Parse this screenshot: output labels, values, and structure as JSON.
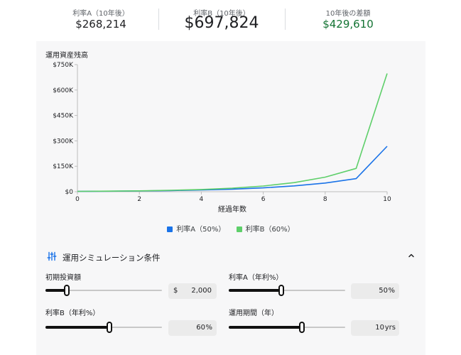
{
  "summary": {
    "rate_a_label": "利率A（10年後）",
    "rate_a_value": "$268,214",
    "rate_b_label": "利率B（10年後）",
    "rate_b_value": "$697,824",
    "diff_label": "10年後の差額",
    "diff_value": "$429,610"
  },
  "chart_data": {
    "type": "line",
    "title": "運用資産残高",
    "xlabel": "経過年数",
    "ylabel": "",
    "x": [
      0,
      1,
      2,
      3,
      4,
      5,
      6,
      7,
      8,
      9,
      10
    ],
    "xticks": [
      "0",
      "2",
      "4",
      "6",
      "8",
      "10"
    ],
    "xlim": [
      0,
      10
    ],
    "ylim": [
      0,
      750000
    ],
    "yticks": [
      "$0",
      "$150K",
      "$300K",
      "$450K",
      "$600K",
      "$750K"
    ],
    "grid": false,
    "legend": "bottom",
    "series": [
      {
        "name": "利率A（50%）",
        "color": "#1a73e8",
        "values": [
          2000,
          3000,
          4500,
          6750,
          10125,
          15188,
          22781,
          34172,
          51258,
          76887,
          268214
        ]
      },
      {
        "name": "利率B（60%）",
        "color": "#5ecf6a",
        "values": [
          2000,
          3200,
          5120,
          8192,
          13107,
          20972,
          33554,
          53687,
          85899,
          137439,
          697824
        ]
      }
    ]
  },
  "settings": {
    "title": "運用シミュレーション条件",
    "icon": "tune-icon",
    "collapse_icon": "chevron-up-icon",
    "initial_label": "初期投資額",
    "initial_prefix": "$",
    "initial_value": "2,000",
    "initial_level": 0.18,
    "rate_a_label": "利率A（年利%）",
    "rate_a_value": "50",
    "rate_a_suffix": "%",
    "rate_a_level": 0.45,
    "rate_b_label": "利率B（年利%）",
    "rate_b_value": "60",
    "rate_b_suffix": "%",
    "rate_b_level": 0.55,
    "period_label": "運用期間（年）",
    "period_value": "10",
    "period_suffix": "yrs",
    "period_level": 0.63
  }
}
